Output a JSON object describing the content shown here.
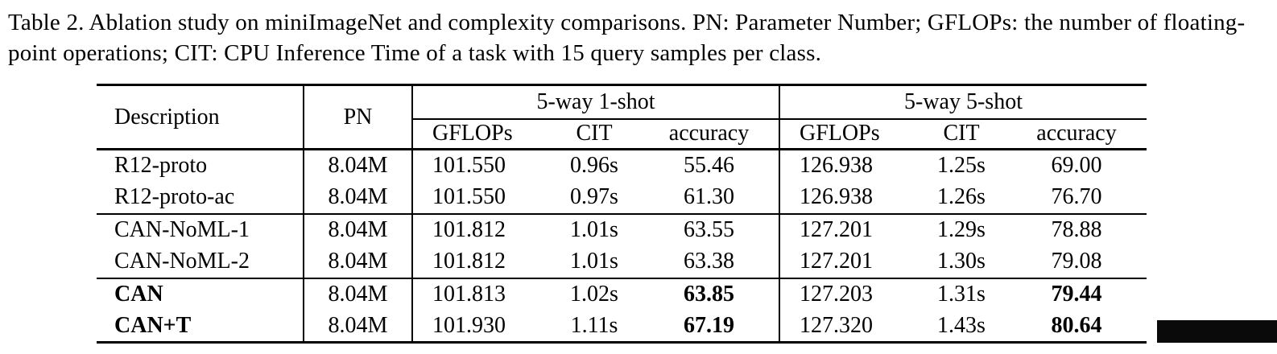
{
  "caption": "Table 2. Ablation study on miniImageNet and complexity comparisons. PN: Parameter Number; GFLOPs: the number of floating-point operations; CIT: CPU Inference Time of a task with 15 query samples per class.",
  "table": {
    "headers": {
      "description": "Description",
      "pn": "PN",
      "group1": "5-way 1-shot",
      "group2": "5-way 5-shot",
      "sub": [
        "GFLOPs",
        "CIT",
        "accuracy"
      ]
    },
    "rows": [
      {
        "cells": [
          "R12-proto",
          "8.04M",
          "101.550",
          "0.96s",
          "55.46",
          "126.938",
          "1.25s",
          "69.00"
        ]
      },
      {
        "cells": [
          "R12-proto-ac",
          "8.04M",
          "101.550",
          "0.97s",
          "61.30",
          "126.938",
          "1.26s",
          "76.70"
        ]
      },
      {
        "cells": [
          "CAN-NoML-1",
          "8.04M",
          "101.812",
          "1.01s",
          "63.55",
          "127.201",
          "1.29s",
          "78.88"
        ]
      },
      {
        "cells": [
          "CAN-NoML-2",
          "8.04M",
          "101.812",
          "1.01s",
          "63.38",
          "127.201",
          "1.30s",
          "79.08"
        ]
      },
      {
        "cells": [
          "CAN",
          "8.04M",
          "101.813",
          "1.02s",
          "63.85",
          "127.203",
          "1.31s",
          "79.44"
        ]
      },
      {
        "cells": [
          "CAN+T",
          "8.04M",
          "101.930",
          "1.11s",
          "67.19",
          "127.320",
          "1.43s",
          "80.64"
        ]
      }
    ]
  }
}
